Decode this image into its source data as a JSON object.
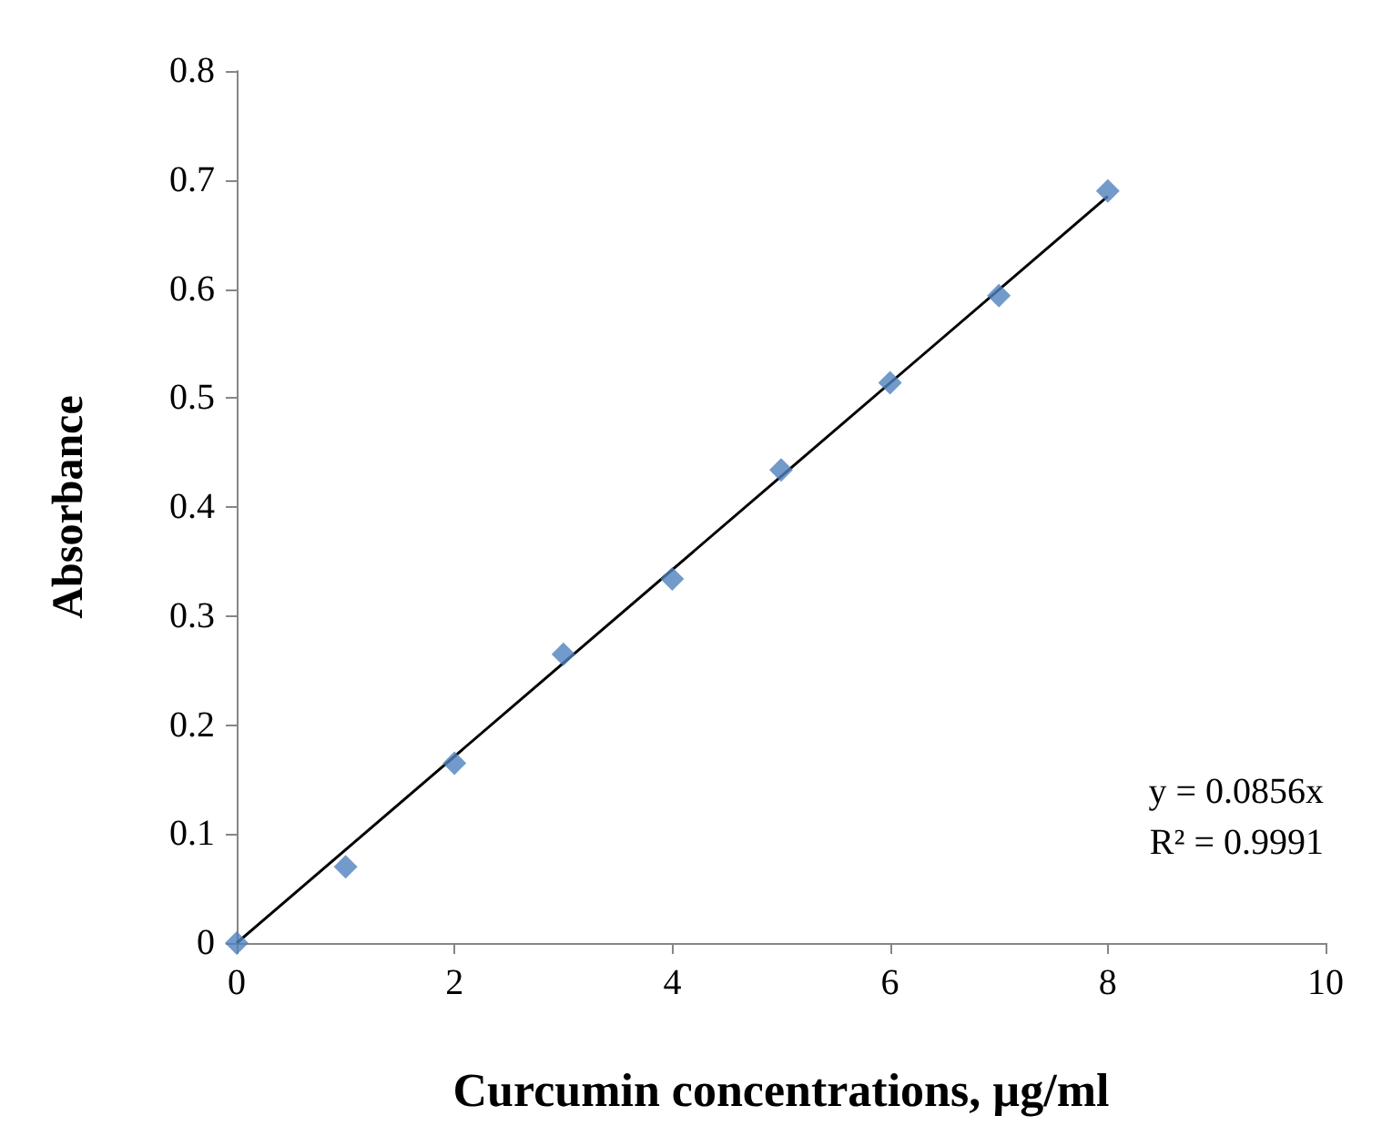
{
  "chart_data": {
    "type": "scatter",
    "xlabel": "Curcumin concentrations, µg/ml",
    "ylabel": "Absorbance",
    "xlim": [
      0,
      10
    ],
    "xticks": [
      0,
      2,
      4,
      6,
      8,
      10
    ],
    "ylim": [
      0,
      0.8
    ],
    "yticks": [
      0,
      0.1,
      0.2,
      0.3,
      0.4,
      0.5,
      0.6,
      0.7,
      0.8
    ],
    "marker": "diamond",
    "grid": false,
    "series": [
      {
        "color": "#4f81bd",
        "x": [
          0,
          1,
          2,
          3,
          4,
          5,
          6,
          7,
          8
        ],
        "values": [
          0,
          0.07,
          0.165,
          0.265,
          0.334,
          0.434,
          0.514,
          0.594,
          0.69
        ]
      },
      {
        "type": "line",
        "color": "#000000",
        "marker": "none",
        "x": [
          0,
          8
        ],
        "values": [
          0,
          0.685
        ]
      }
    ],
    "annotations": [
      "y = 0.0856x",
      "R² = 0.9991"
    ]
  }
}
